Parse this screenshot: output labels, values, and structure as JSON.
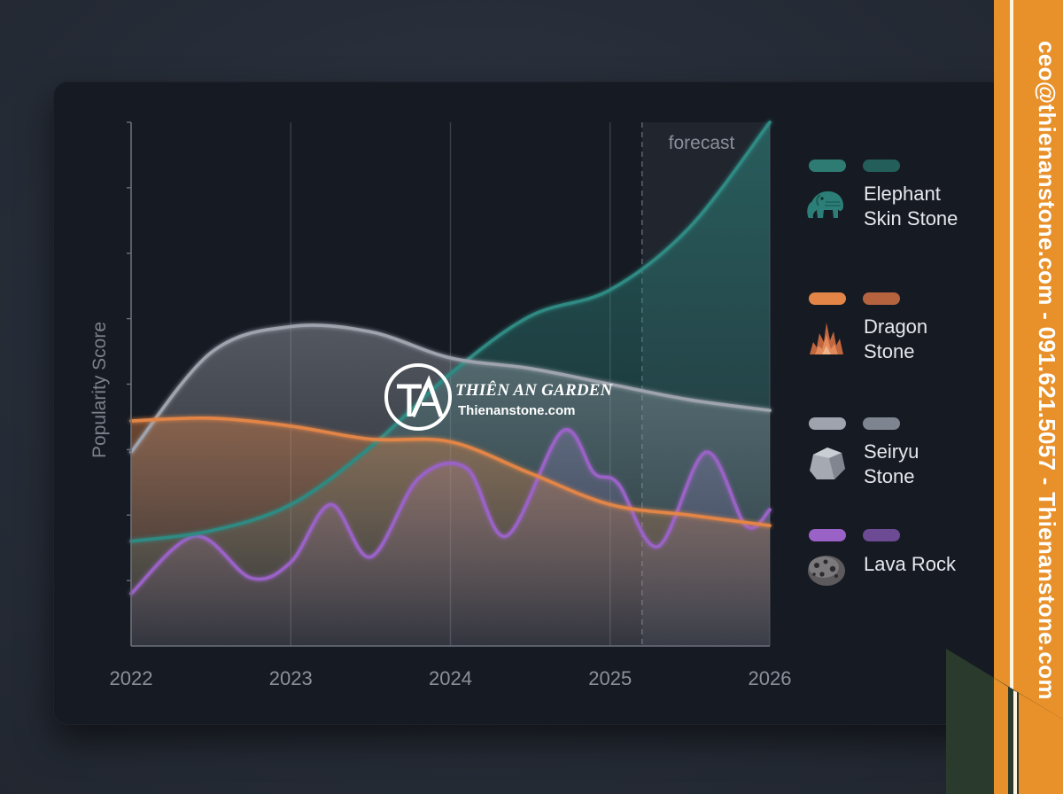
{
  "chart_data": {
    "type": "area",
    "ylabel": "Popularity Score",
    "xlabel": "",
    "x_ticks": [
      "2022",
      "2023",
      "2024",
      "2025",
      "2026"
    ],
    "xlim": [
      2022,
      2026
    ],
    "ylim": [
      0,
      100
    ],
    "grid": "vertical",
    "forecast_label": "forecast",
    "forecast_start": 2025.2,
    "legend_position": "right",
    "series": [
      {
        "name": "Elephant Skin Stone",
        "color": "#2f8a82",
        "icon": "elephant-icon",
        "x": [
          2022,
          2022.5,
          2023,
          2023.5,
          2024,
          2024.5,
          2025,
          2025.5,
          2026
        ],
        "y": [
          20,
          22,
          27,
          38,
          52,
          63,
          68,
          80,
          100
        ]
      },
      {
        "name": "Dragon Stone",
        "color": "#e28546",
        "icon": "flame-icon",
        "x": [
          2022,
          2022.5,
          2023,
          2023.5,
          2024,
          2024.5,
          2025,
          2025.5,
          2026
        ],
        "y": [
          43,
          43.5,
          42,
          39.5,
          39,
          33,
          27,
          25,
          23
        ]
      },
      {
        "name": "Seiryu Stone",
        "color": "#9ea3ad",
        "icon": "rock-icon",
        "x": [
          2022,
          2022.5,
          2023,
          2023.5,
          2024,
          2024.5,
          2025,
          2025.5,
          2026
        ],
        "y": [
          37,
          56,
          61,
          60,
          55,
          53,
          50,
          47,
          45
        ]
      },
      {
        "name": "Lava Rock",
        "color": "#9a62c6",
        "icon": "lava-rock-icon",
        "x": [
          2022,
          2022.4,
          2022.75,
          2023,
          2023.25,
          2023.5,
          2023.8,
          2024.1,
          2024.35,
          2024.7,
          2024.9,
          2025.05,
          2025.3,
          2025.6,
          2025.85,
          2026
        ],
        "y": [
          10,
          21,
          13,
          16,
          27,
          17,
          32,
          34,
          21,
          41,
          33,
          31,
          19,
          37,
          23,
          26
        ]
      }
    ]
  },
  "legend_colors": {
    "Elephant Skin Stone": [
      "#2e7b74",
      "#235e5b"
    ],
    "Dragon Stone": [
      "#e28546",
      "#b5633f"
    ],
    "Seiryu Stone": [
      "#9ea3ad",
      "#7f8590"
    ],
    "Lava Rock": [
      "#9a62c6",
      "#6d4b94"
    ]
  },
  "legend_labels": {
    "elephant_1": "Elephant",
    "elephant_2": "Skin Stone",
    "dragon_1": "Dragon",
    "dragon_2": "Stone",
    "seiryu_1": "Seiryu",
    "seiryu_2": "Stone",
    "lava_1": "Lava Rock"
  },
  "watermark": {
    "logo_text": "TA",
    "title": "THIÊN AN GARDEN",
    "subtitle": "Thienanstone.com"
  },
  "side_banner": {
    "text": "ceo@thienanstone.com - 091.621.5057 - Thienanstone.com",
    "color": "#e8902a"
  }
}
